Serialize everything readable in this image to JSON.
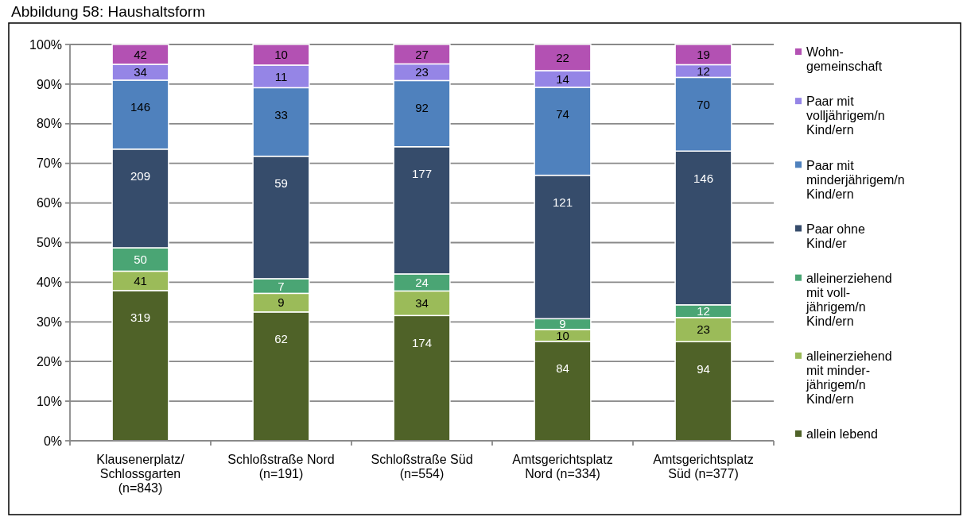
{
  "chart_data": {
    "type": "bar",
    "title": "Abbildung 58: Haushaltsform",
    "stacked": true,
    "grid": "y",
    "legend": "right",
    "categories": [
      "Klausenerplatz/ Schlossgarten (n=843)",
      "Schloßstraße Nord (n=191)",
      "Schloßstraße Süd (n=554)",
      "Amtsgerichtsplatz Nord (n=334)",
      "Amtsgerichtsplatz Süd (n=377)"
    ],
    "ylim": [
      0,
      100
    ],
    "yticks": [
      {
        "value": 0,
        "label": "0%"
      },
      {
        "value": 10,
        "label": "10%"
      },
      {
        "value": 20,
        "label": "20%"
      },
      {
        "value": 30,
        "label": "30%"
      },
      {
        "value": 40,
        "label": "40%"
      },
      {
        "value": 50,
        "label": "50%"
      },
      {
        "value": 60,
        "label": "60%"
      },
      {
        "value": 70,
        "label": "70%"
      },
      {
        "value": 80,
        "label": "80%"
      },
      {
        "value": 90,
        "label": "90%"
      },
      {
        "value": 100,
        "label": "100%"
      }
    ],
    "series": [
      {
        "name": "allein lebend",
        "color": "#4f6228",
        "values": [
          37.9,
          32.5,
          31.6,
          25.1,
          25.0
        ]
      },
      {
        "name": "alleinerziehend mit minder-jährigem/n Kind/ern",
        "color": "#9bbb59",
        "values": [
          4.9,
          4.7,
          6.2,
          3.0,
          6.1
        ]
      },
      {
        "name": "alleinerziehend mit voll-jährigem/n Kind/ern",
        "color": "#4aa574",
        "values": [
          5.9,
          3.7,
          4.3,
          2.7,
          3.2
        ]
      },
      {
        "name": "Paar ohne Kind/er",
        "color": "#364c6b",
        "values": [
          24.9,
          30.9,
          32.1,
          36.2,
          38.8
        ]
      },
      {
        "name": "Paar mit minderjährigem/n Kind/ern",
        "color": "#4f81bd",
        "values": [
          17.4,
          17.3,
          16.7,
          22.2,
          18.6
        ]
      },
      {
        "name": "Paar mit volljährigem/n Kind/ern",
        "color": "#9585e6",
        "values": [
          4.0,
          5.7,
          4.2,
          4.2,
          3.2
        ]
      },
      {
        "name": "Wohn-gemeinschaft",
        "color": "#b351b3",
        "values": [
          5.0,
          5.2,
          4.9,
          6.6,
          5.1
        ]
      }
    ],
    "annotations": [
      {
        "text": "319",
        "x": "Klausenerplatz/ Schlossgarten (n=843)",
        "y": 37.9
      },
      {
        "text": "41",
        "x": "Klausenerplatz/ Schlossgarten (n=843)",
        "y": 42.8
      },
      {
        "text": "50",
        "x": "Klausenerplatz/ Schlossgarten (n=843)",
        "y": 48.7
      },
      {
        "text": "209",
        "x": "Klausenerplatz/ Schlossgarten (n=843)",
        "y": 73.6
      },
      {
        "text": "146",
        "x": "Klausenerplatz/ Schlossgarten (n=843)",
        "y": 91.0
      },
      {
        "text": "34",
        "x": "Klausenerplatz/ Schlossgarten (n=843)",
        "y": 95.0
      },
      {
        "text": "42",
        "x": "Klausenerplatz/ Schlossgarten (n=843)",
        "y": 100
      },
      {
        "text": "62",
        "x": "Schloßstraße Nord (n=191)",
        "y": 32.5
      },
      {
        "text": "9",
        "x": "Schloßstraße Nord (n=191)",
        "y": 37.2
      },
      {
        "text": "7",
        "x": "Schloßstraße Nord (n=191)",
        "y": 40.9
      },
      {
        "text": "59",
        "x": "Schloßstraße Nord (n=191)",
        "y": 71.8
      },
      {
        "text": "33",
        "x": "Schloßstraße Nord (n=191)",
        "y": 89.1
      },
      {
        "text": "11",
        "x": "Schloßstraße Nord (n=191)",
        "y": 94.8
      },
      {
        "text": "10",
        "x": "Schloßstraße Nord (n=191)",
        "y": 100
      },
      {
        "text": "174",
        "x": "Schloßstraße Süd (n=554)",
        "y": 31.6
      },
      {
        "text": "34",
        "x": "Schloßstraße Süd (n=554)",
        "y": 37.8
      },
      {
        "text": "24",
        "x": "Schloßstraße Süd (n=554)",
        "y": 42.1
      },
      {
        "text": "177",
        "x": "Schloßstraße Süd (n=554)",
        "y": 74.2
      },
      {
        "text": "92",
        "x": "Schloßstraße Süd (n=554)",
        "y": 90.9
      },
      {
        "text": "23",
        "x": "Schloßstraße Süd (n=554)",
        "y": 95.1
      },
      {
        "text": "27",
        "x": "Schloßstraße Süd (n=554)",
        "y": 100
      },
      {
        "text": "84",
        "x": "Amtsgerichtsplatz Nord (n=334)",
        "y": 25.1
      },
      {
        "text": "10",
        "x": "Amtsgerichtsplatz Nord (n=334)",
        "y": 28.1
      },
      {
        "text": "9",
        "x": "Amtsgerichtsplatz Nord (n=334)",
        "y": 30.8
      },
      {
        "text": "121",
        "x": "Amtsgerichtsplatz Nord (n=334)",
        "y": 67.0
      },
      {
        "text": "74",
        "x": "Amtsgerichtsplatz Nord (n=334)",
        "y": 89.2
      },
      {
        "text": "14",
        "x": "Amtsgerichtsplatz Nord (n=334)",
        "y": 93.4
      },
      {
        "text": "22",
        "x": "Amtsgerichtsplatz Nord (n=334)",
        "y": 100
      },
      {
        "text": "94",
        "x": "Amtsgerichtsplatz Süd (n=377)",
        "y": 25.0
      },
      {
        "text": "23",
        "x": "Amtsgerichtsplatz Süd (n=377)",
        "y": 31.1
      },
      {
        "text": "12",
        "x": "Amtsgerichtsplatz Süd (n=377)",
        "y": 34.3
      },
      {
        "text": "146",
        "x": "Amtsgerichtsplatz Süd (n=377)",
        "y": 73.1
      },
      {
        "text": "70",
        "x": "Amtsgerichtsplatz Süd (n=377)",
        "y": 91.7
      },
      {
        "text": "12",
        "x": "Amtsgerichtsplatz Süd (n=377)",
        "y": 94.9
      },
      {
        "text": "19",
        "x": "Amtsgerichtsplatz Süd (n=377)",
        "y": 100
      }
    ]
  }
}
